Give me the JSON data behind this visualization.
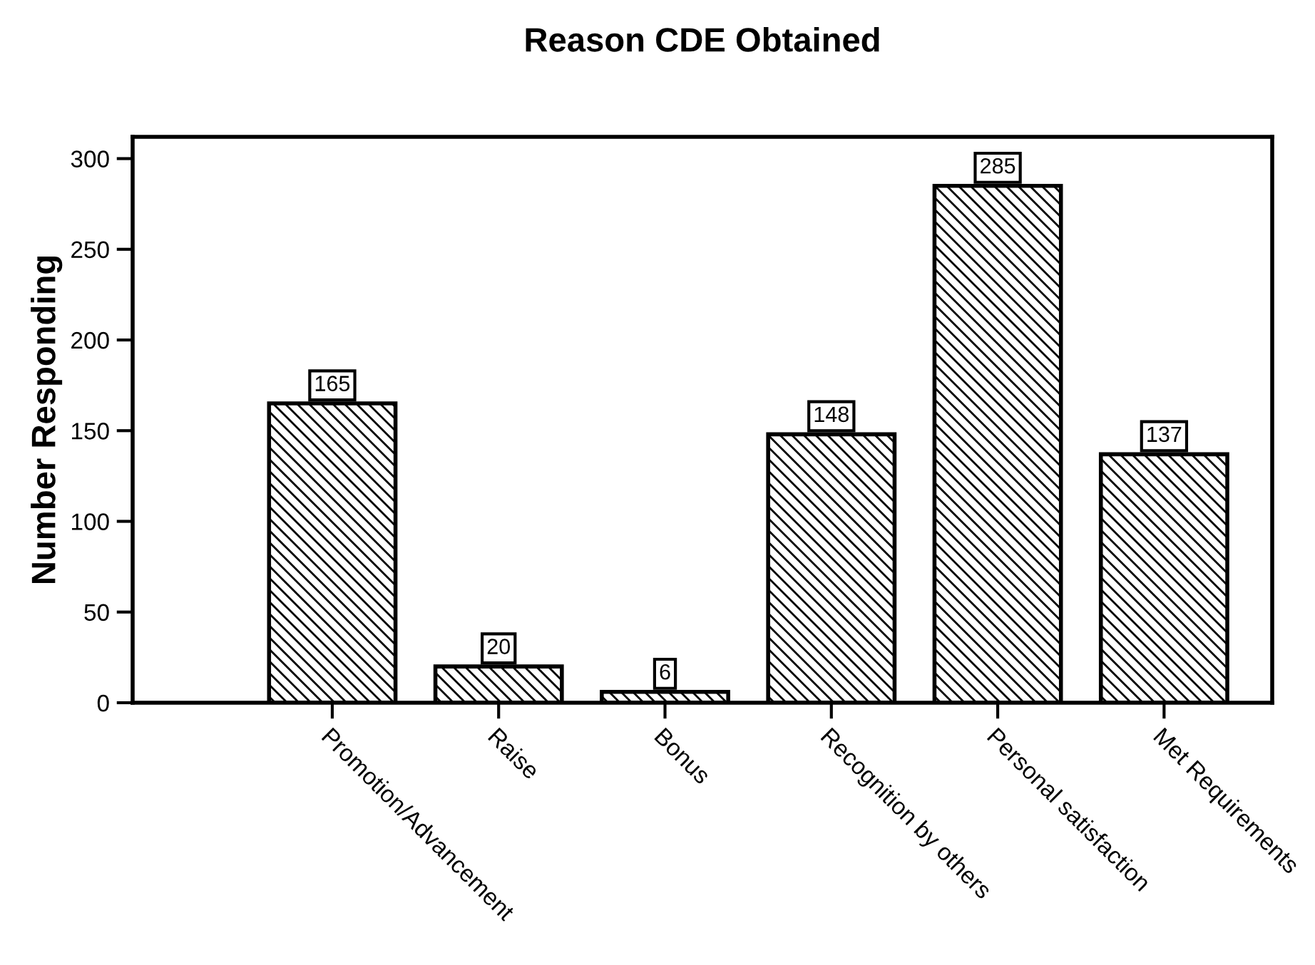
{
  "chart_data": {
    "type": "bar",
    "title": "Reason CDE Obtained",
    "ylabel": "Number Responding",
    "categories": [
      "Promotion/Advancement",
      "Raise",
      "Bonus",
      "Recognition by others",
      "Personal satisfaction",
      "Met Requirements"
    ],
    "values": [
      165,
      20,
      6,
      148,
      285,
      137
    ],
    "color": "#000000",
    "ylim": [
      0,
      312
    ],
    "yticks": [
      0,
      50,
      100,
      150,
      200,
      250,
      300
    ],
    "grid": false,
    "data_labels": true
  }
}
